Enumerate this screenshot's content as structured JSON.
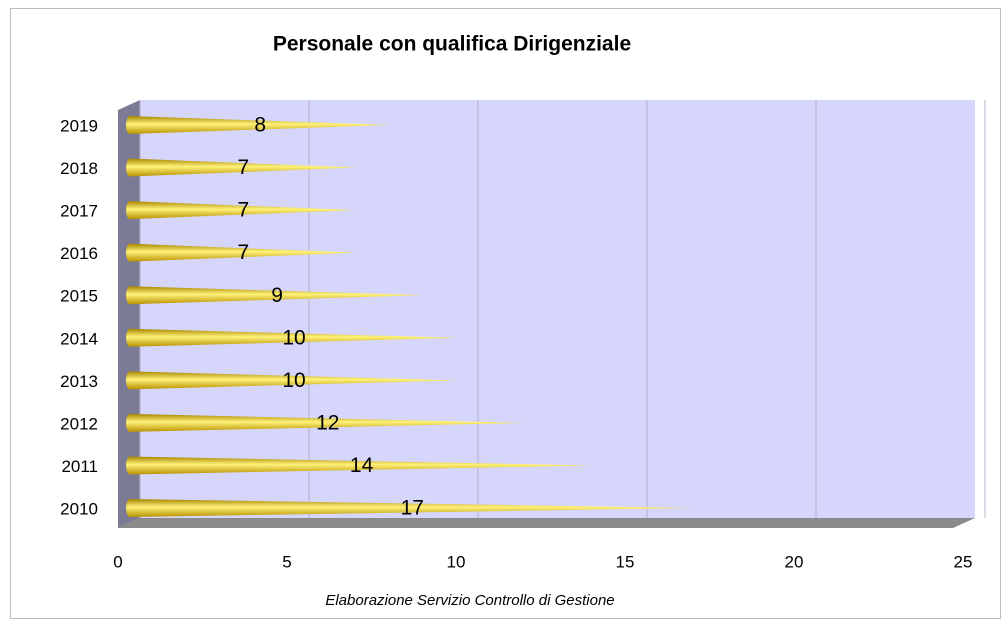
{
  "chart_data": {
    "type": "bar",
    "orientation": "horizontal",
    "title": "Personale con qualifica Dirigenziale",
    "subtitle": "Elaborazione Servizio Controllo di Gestione",
    "categories": [
      "2010",
      "2011",
      "2012",
      "2013",
      "2014",
      "2015",
      "2016",
      "2017",
      "2018",
      "2019"
    ],
    "values": [
      17,
      14,
      12,
      10,
      10,
      9,
      7,
      7,
      7,
      8
    ],
    "color": "#f2cf1c",
    "xlim": [
      0,
      25
    ],
    "xticks": [
      0,
      5,
      10,
      15,
      20,
      25
    ],
    "grid": true
  }
}
